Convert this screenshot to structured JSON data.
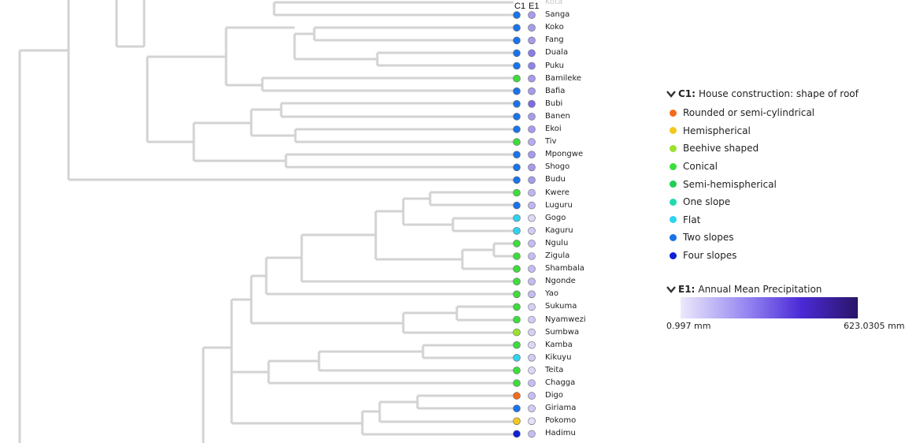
{
  "column_headers": {
    "c1": "C1",
    "e1": "E1"
  },
  "tips": [
    {
      "label": "Kota",
      "c1": "",
      "e1": "",
      "faded": true
    },
    {
      "label": "Sanga",
      "c1": "#1a73e8",
      "e1": "#a59cec"
    },
    {
      "label": "Koko",
      "c1": "#1a73e8",
      "e1": "#a59cec"
    },
    {
      "label": "Fang",
      "c1": "#1a73e8",
      "e1": "#a59cec"
    },
    {
      "label": "Duala",
      "c1": "#1a73e8",
      "e1": "#8a7ee8"
    },
    {
      "label": "Puku",
      "c1": "#1a73e8",
      "e1": "#8f84e9"
    },
    {
      "label": "Bamileke",
      "c1": "#3ddc3d",
      "e1": "#a59cec"
    },
    {
      "label": "Bafia",
      "c1": "#1a73e8",
      "e1": "#a59cec"
    },
    {
      "label": "Bubi",
      "c1": "#1a73e8",
      "e1": "#7c6de6"
    },
    {
      "label": "Banen",
      "c1": "#1a73e8",
      "e1": "#a59cec"
    },
    {
      "label": "Ekoi",
      "c1": "#1a73e8",
      "e1": "#a59cec"
    },
    {
      "label": "Tiv",
      "c1": "#3ddc3d",
      "e1": "#b4adf0"
    },
    {
      "label": "Mpongwe",
      "c1": "#1a73e8",
      "e1": "#a59cec"
    },
    {
      "label": "Shogo",
      "c1": "#1a73e8",
      "e1": "#a59cec"
    },
    {
      "label": "Budu",
      "c1": "#1a73e8",
      "e1": "#a59cec"
    },
    {
      "label": "Kwere",
      "c1": "#3ddc3d",
      "e1": "#bdb7f1"
    },
    {
      "label": "Luguru",
      "c1": "#1a73e8",
      "e1": "#bdb7f1"
    },
    {
      "label": "Gogo",
      "c1": "#2ed3f0",
      "e1": "#dcd9f8"
    },
    {
      "label": "Kaguru",
      "c1": "#2ed3f0",
      "e1": "#d0ccf6"
    },
    {
      "label": "Ngulu",
      "c1": "#3ddc3d",
      "e1": "#c3bdf3"
    },
    {
      "label": "Zigula",
      "c1": "#3ddc3d",
      "e1": "#c3bdf3"
    },
    {
      "label": "Shambala",
      "c1": "#3ddc3d",
      "e1": "#c3bdf3"
    },
    {
      "label": "Ngonde",
      "c1": "#3ddc3d",
      "e1": "#c3bdf3"
    },
    {
      "label": "Yao",
      "c1": "#3ddc3d",
      "e1": "#c3bdf3"
    },
    {
      "label": "Sukuma",
      "c1": "#3ddc3d",
      "e1": "#d4d0f7"
    },
    {
      "label": "Nyamwezi",
      "c1": "#3ddc3d",
      "e1": "#d0ccf6"
    },
    {
      "label": "Sumbwa",
      "c1": "#9be22e",
      "e1": "#d4d0f7"
    },
    {
      "label": "Kamba",
      "c1": "#3ddc3d",
      "e1": "#dcd9f8"
    },
    {
      "label": "Kikuyu",
      "c1": "#2ed3f0",
      "e1": "#d0ccf6"
    },
    {
      "label": "Teita",
      "c1": "#3ddc3d",
      "e1": "#dcd9f8"
    },
    {
      "label": "Chagga",
      "c1": "#3ddc3d",
      "e1": "#c3bdf3"
    },
    {
      "label": "Digo",
      "c1": "#f26b1d",
      "e1": "#c3bdf3"
    },
    {
      "label": "Giriama",
      "c1": "#1a73e8",
      "e1": "#d0ccf6"
    },
    {
      "label": "Pokomo",
      "c1": "#f2c81d",
      "e1": "#e4e2f9"
    },
    {
      "label": "Hadimu",
      "c1": "#0f1fd6",
      "e1": "#c3bdf3"
    }
  ],
  "legend_c1": {
    "code": "C1:",
    "title": "House construction: shape of roof",
    "items": [
      {
        "label": "Rounded or semi-cylindrical",
        "color": "#f26b1d"
      },
      {
        "label": "Hemispherical",
        "color": "#f2c81d"
      },
      {
        "label": "Beehive shaped",
        "color": "#9be22e"
      },
      {
        "label": "Conical",
        "color": "#3ddc3d"
      },
      {
        "label": "Semi-hemispherical",
        "color": "#22cc55"
      },
      {
        "label": "One slope",
        "color": "#22d9b0"
      },
      {
        "label": "Flat",
        "color": "#2ed3f0"
      },
      {
        "label": "Two slopes",
        "color": "#1a73e8"
      },
      {
        "label": "Four slopes",
        "color": "#0f1fd6"
      }
    ]
  },
  "legend_e1": {
    "code": "E1:",
    "title": "Annual Mean Precipitation",
    "min_label": "0.997 mm",
    "max_label": "623.0305 mm"
  }
}
